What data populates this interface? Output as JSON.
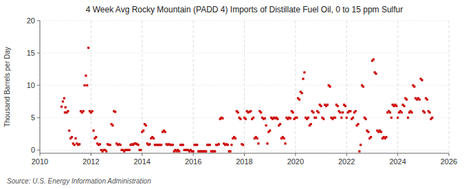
{
  "chart_data": {
    "type": "scatter",
    "title": "4 Week Avg Rocky Mountain (PADD 4) Imports of Distillate Fuel Oil, 0 to 15 ppm Sulfur",
    "ylabel": "Thousand Barrels per Day",
    "annotations": [
      "Source: U.S. Energy Information Administration"
    ],
    "color": "#cc0000",
    "marker": "square",
    "grid": true,
    "xlim": [
      2010,
      2026
    ],
    "ylim": [
      -0.5,
      20
    ],
    "xticks": [
      2010,
      2012,
      2014,
      2016,
      2018,
      2020,
      2022,
      2024,
      2026
    ],
    "yticks": [
      0,
      5,
      10,
      15,
      20
    ],
    "x": [
      2010.85,
      2010.9,
      2010.95,
      2010.98,
      2011.0,
      2011.05,
      2011.1,
      2011.15,
      2011.2,
      2011.25,
      2011.3,
      2011.35,
      2011.4,
      2011.45,
      2011.5,
      2011.55,
      2011.6,
      2011.65,
      2011.7,
      2011.75,
      2011.8,
      2011.85,
      2011.9,
      2011.95,
      2012.0,
      2012.05,
      2012.1,
      2012.15,
      2012.2,
      2012.25,
      2012.3,
      2012.35,
      2012.4,
      2012.45,
      2012.5,
      2012.55,
      2012.6,
      2012.65,
      2012.7,
      2012.75,
      2012.8,
      2012.85,
      2012.9,
      2012.95,
      2013.0,
      2013.05,
      2013.1,
      2013.15,
      2013.2,
      2013.25,
      2013.3,
      2013.35,
      2013.4,
      2013.45,
      2013.5,
      2013.55,
      2013.6,
      2013.65,
      2013.7,
      2013.75,
      2013.8,
      2013.85,
      2013.9,
      2013.95,
      2014.0,
      2014.05,
      2014.1,
      2014.15,
      2014.2,
      2014.25,
      2014.3,
      2014.35,
      2014.4,
      2014.45,
      2014.5,
      2014.55,
      2014.6,
      2014.65,
      2014.7,
      2014.75,
      2014.8,
      2014.85,
      2014.9,
      2014.95,
      2015.0,
      2015.05,
      2015.1,
      2015.15,
      2015.2,
      2015.25,
      2015.3,
      2015.35,
      2015.4,
      2015.45,
      2015.5,
      2015.55,
      2015.6,
      2015.65,
      2015.7,
      2015.75,
      2015.8,
      2015.85,
      2015.9,
      2015.95,
      2016.0,
      2016.05,
      2016.1,
      2016.15,
      2016.2,
      2016.25,
      2016.3,
      2016.35,
      2016.4,
      2016.45,
      2016.5,
      2016.55,
      2016.6,
      2016.65,
      2016.7,
      2016.75,
      2016.8,
      2016.85,
      2016.9,
      2016.95,
      2017.0,
      2017.05,
      2017.1,
      2017.15,
      2017.2,
      2017.25,
      2017.3,
      2017.35,
      2017.4,
      2017.45,
      2017.5,
      2017.55,
      2017.6,
      2017.65,
      2017.7,
      2017.75,
      2017.8,
      2017.85,
      2017.9,
      2017.95,
      2018.0,
      2018.05,
      2018.1,
      2018.15,
      2018.2,
      2018.25,
      2018.3,
      2018.35,
      2018.4,
      2018.45,
      2018.5,
      2018.55,
      2018.6,
      2018.65,
      2018.7,
      2018.75,
      2018.8,
      2018.85,
      2018.9,
      2018.95,
      2019.0,
      2019.05,
      2019.1,
      2019.15,
      2019.2,
      2019.25,
      2019.3,
      2019.35,
      2019.4,
      2019.45,
      2019.5,
      2019.55,
      2019.6,
      2019.65,
      2019.7,
      2019.75,
      2019.8,
      2019.85,
      2019.9,
      2019.95,
      2020.0,
      2020.05,
      2020.1,
      2020.15,
      2020.2,
      2020.25,
      2020.3,
      2020.35,
      2020.4,
      2020.45,
      2020.5,
      2020.55,
      2020.6,
      2020.65,
      2020.7,
      2020.75,
      2020.8,
      2020.85,
      2020.9,
      2020.95,
      2021.0,
      2021.05,
      2021.1,
      2021.15,
      2021.2,
      2021.25,
      2021.3,
      2021.35,
      2021.4,
      2021.45,
      2021.5,
      2021.55,
      2021.6,
      2021.65,
      2021.7,
      2021.75,
      2021.8,
      2021.85,
      2021.9,
      2021.95,
      2022.0,
      2022.05,
      2022.1,
      2022.15,
      2022.2,
      2022.25,
      2022.3,
      2022.35,
      2022.4,
      2022.45,
      2022.5,
      2022.55,
      2022.6,
      2022.65,
      2022.7,
      2022.75,
      2022.8,
      2022.85,
      2022.9,
      2022.95,
      2023.0,
      2023.05,
      2023.1,
      2023.15,
      2023.2,
      2023.25,
      2023.3,
      2023.35,
      2023.4,
      2023.45,
      2023.5,
      2023.55,
      2023.6,
      2023.65,
      2023.7,
      2023.75,
      2023.8,
      2023.85,
      2023.9,
      2023.95,
      2024.0,
      2024.05,
      2024.1,
      2024.15,
      2024.2,
      2024.25,
      2024.3,
      2024.35,
      2024.4,
      2024.45,
      2024.5,
      2024.55,
      2024.6,
      2024.65,
      2024.7,
      2024.75,
      2024.8,
      2024.85,
      2024.9,
      2024.95,
      2025.0,
      2025.05,
      2025.1,
      2025.15,
      2025.2,
      2025.25,
      2025.3,
      2025.35
    ],
    "values": [
      6.7,
      7.5,
      8.0,
      5.8,
      6.6,
      5.8,
      6.0,
      3.0,
      1.8,
      2.0,
      1.0,
      0.8,
      1.8,
      1.0,
      0.8,
      0.9,
      6.0,
      5.8,
      6.0,
      10.0,
      11.5,
      10.0,
      15.8,
      6.0,
      5.8,
      6.0,
      3.0,
      1.8,
      2.0,
      1.0,
      0.8,
      0.9,
      0.0,
      -0.2,
      0.0,
      0.0,
      -0.2,
      0.9,
      0.8,
      0.8,
      4.0,
      3.8,
      6.0,
      5.9,
      1.0,
      0.8,
      0.9,
      0.8,
      0.0,
      0.0,
      -0.2,
      0.0,
      0.0,
      0.0,
      0.0,
      0.8,
      0.9,
      0.8,
      1.0,
      1.0,
      0.9,
      0.8,
      0.0,
      0.0,
      2.8,
      3.0,
      4.0,
      3.8,
      1.0,
      0.8,
      0.9,
      1.8,
      2.0,
      1.8,
      0.8,
      0.8,
      0.8,
      0.8,
      0.8,
      0.8,
      2.8,
      3.0,
      2.8,
      0.9,
      0.8,
      0.9,
      0.8,
      0.8,
      0.8,
      -0.2,
      0.0,
      -0.2,
      0.0,
      -0.2,
      0.8,
      0.8,
      0.8,
      0.0,
      0.0,
      0.0,
      0.0,
      -0.2,
      0.0,
      -0.2,
      -0.2,
      0.8,
      0.8,
      0.8,
      -0.2,
      -0.2,
      -0.2,
      -0.2,
      -0.2,
      -0.2,
      -0.2,
      0.8,
      0.8,
      0.8,
      -0.2,
      -0.2,
      -0.2,
      -0.2,
      0.8,
      0.8,
      0.9,
      4.8,
      5.0,
      4.9,
      1.0,
      0.8,
      0.9,
      0.8,
      -0.2,
      -0.2,
      0.8,
      1.8,
      2.0,
      1.8,
      6.0,
      5.8,
      5.0,
      4.8,
      0.9,
      0.8,
      5.0,
      4.8,
      6.0,
      5.8,
      5.9,
      6.0,
      4.8,
      5.0,
      1.8,
      2.0,
      1.8,
      1.0,
      6.0,
      5.8,
      5.0,
      4.8,
      4.9,
      3.8,
      1.0,
      2.8,
      3.0,
      5.0,
      4.8,
      5.0,
      4.9,
      5.0,
      4.8,
      3.8,
      4.0,
      1.8,
      2.0,
      1.8,
      1.0,
      5.0,
      4.8,
      5.0,
      4.9,
      6.0,
      5.8,
      4.8,
      5.0,
      5.0,
      8.0,
      7.8,
      9.0,
      8.8,
      11.0,
      12.0,
      5.0,
      4.8,
      5.0,
      3.8,
      4.0,
      6.0,
      5.8,
      5.0,
      5.0,
      6.0,
      5.8,
      7.0,
      6.8,
      5.0,
      4.8,
      7.0,
      6.8,
      7.0,
      10.0,
      9.8,
      5.0,
      4.8,
      5.0,
      5.0,
      7.0,
      6.8,
      6.0,
      5.8,
      5.0,
      5.8,
      7.0,
      6.8,
      5.0,
      5.8,
      6.0,
      6.0,
      4.8,
      5.0,
      5.8,
      6.0,
      3.8,
      4.0,
      -0.2,
      0.8,
      10.0,
      9.8,
      5.0,
      4.8,
      3.0,
      2.8,
      1.8,
      2.0,
      13.8,
      14.0,
      12.0,
      11.8,
      3.0,
      2.8,
      3.0,
      2.8,
      1.8,
      2.0,
      1.8,
      2.0,
      5.8,
      6.0,
      5.8,
      5.0,
      7.0,
      6.8,
      7.0,
      6.8,
      5.0,
      5.8,
      6.0,
      5.8,
      7.0,
      6.8,
      8.0,
      7.8,
      5.0,
      5.8,
      6.0,
      5.8,
      10.0,
      9.8,
      8.0,
      7.8,
      8.0,
      7.8,
      11.0,
      10.8,
      6.0,
      5.8,
      8.0,
      7.8,
      6.0,
      5.8,
      4.8,
      5.0
    ]
  }
}
